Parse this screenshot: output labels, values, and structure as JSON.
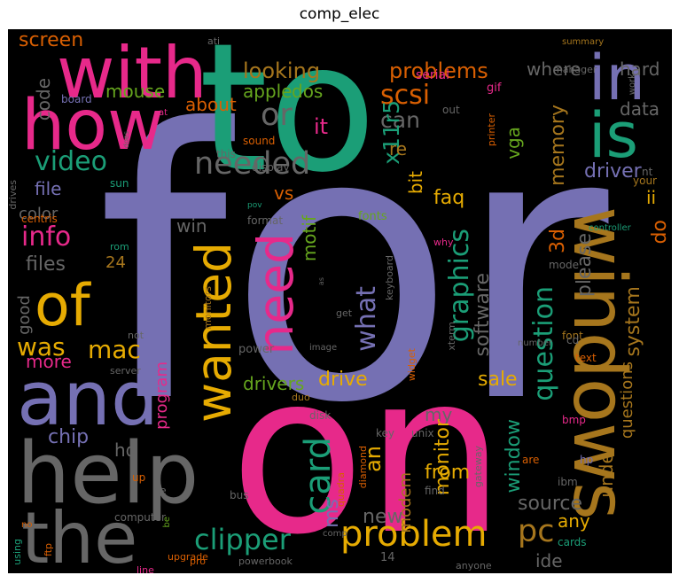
{
  "title": "comp_elec",
  "colors": {
    "purple": "#7570b3",
    "green": "#1b9e77",
    "pink": "#e7298a",
    "gold": "#e6ab02",
    "olive": "#a6761d",
    "orange": "#d95f02",
    "lime": "#66a61e",
    "gray": "#666666"
  },
  "words": [
    {
      "text": "for"
    },
    {
      "text": "to"
    },
    {
      "text": "on"
    },
    {
      "text": "with"
    },
    {
      "text": "how"
    },
    {
      "text": "help"
    },
    {
      "text": "and"
    },
    {
      "text": "the"
    },
    {
      "text": "windows"
    },
    {
      "text": "in"
    },
    {
      "text": "is"
    },
    {
      "text": "of"
    },
    {
      "text": "wanted"
    },
    {
      "text": "need"
    },
    {
      "text": "info"
    },
    {
      "text": "video"
    },
    {
      "text": "needed"
    },
    {
      "text": "or"
    },
    {
      "text": "what"
    },
    {
      "text": "graphics"
    },
    {
      "text": "question"
    },
    {
      "text": "problem"
    },
    {
      "text": "clipper"
    },
    {
      "text": "card"
    },
    {
      "text": "pc"
    },
    {
      "text": "was"
    },
    {
      "text": "mac"
    },
    {
      "text": "screen"
    },
    {
      "text": "looking"
    },
    {
      "text": "problems"
    },
    {
      "text": "apple"
    },
    {
      "text": "where"
    },
    {
      "text": "hard"
    },
    {
      "text": "mouse"
    },
    {
      "text": "dos"
    },
    {
      "text": "scsi"
    },
    {
      "text": "about"
    },
    {
      "text": "code"
    },
    {
      "text": "can"
    },
    {
      "text": "data"
    },
    {
      "text": "x11r5"
    },
    {
      "text": "it"
    },
    {
      "text": "memory"
    },
    {
      "text": "vga"
    },
    {
      "text": "re"
    },
    {
      "text": "file"
    },
    {
      "text": "vs"
    },
    {
      "text": "driver"
    },
    {
      "text": "color"
    },
    {
      "text": "faq"
    },
    {
      "text": "bit"
    },
    {
      "text": "ii"
    },
    {
      "text": "win"
    },
    {
      "text": "do"
    },
    {
      "text": "24"
    },
    {
      "text": "files"
    },
    {
      "text": "motif"
    },
    {
      "text": "3d"
    },
    {
      "text": "please"
    },
    {
      "text": "good"
    },
    {
      "text": "system"
    },
    {
      "text": "software"
    },
    {
      "text": "more"
    },
    {
      "text": "drivers"
    },
    {
      "text": "drive"
    },
    {
      "text": "program"
    },
    {
      "text": "sale"
    },
    {
      "text": "my"
    },
    {
      "text": "questions"
    },
    {
      "text": "chip"
    },
    {
      "text": "hd"
    },
    {
      "text": "from"
    },
    {
      "text": "monitor"
    },
    {
      "text": "window"
    },
    {
      "text": "an"
    },
    {
      "text": "source"
    },
    {
      "text": "modem"
    },
    {
      "text": "under"
    },
    {
      "text": "any"
    },
    {
      "text": "new"
    },
    {
      "text": "ms"
    },
    {
      "text": "ide"
    },
    {
      "text": "ati"
    },
    {
      "text": "board"
    },
    {
      "text": "sound"
    },
    {
      "text": "display"
    },
    {
      "text": "this"
    },
    {
      "text": "sun"
    },
    {
      "text": "format"
    },
    {
      "text": "centris"
    },
    {
      "text": "rom"
    },
    {
      "text": "monitors"
    },
    {
      "text": "server"
    },
    {
      "text": "not"
    },
    {
      "text": "power"
    },
    {
      "text": "fonts"
    },
    {
      "text": "keyboard"
    },
    {
      "text": "get"
    },
    {
      "text": "font"
    },
    {
      "text": "text"
    },
    {
      "text": "cd"
    },
    {
      "text": "image"
    },
    {
      "text": "widget"
    },
    {
      "text": "duo"
    },
    {
      "text": "disk"
    },
    {
      "text": "key"
    },
    {
      "text": "unix"
    },
    {
      "text": "xterm"
    },
    {
      "text": "diamond"
    },
    {
      "text": "quadra"
    },
    {
      "text": "gateway"
    },
    {
      "text": "number"
    },
    {
      "text": "bmp"
    },
    {
      "text": "hp"
    },
    {
      "text": "ibm"
    },
    {
      "text": "find"
    },
    {
      "text": "are"
    },
    {
      "text": "up"
    },
    {
      "text": "se"
    },
    {
      "text": "bus"
    },
    {
      "text": "computer"
    },
    {
      "text": "comp"
    },
    {
      "text": "ftp"
    },
    {
      "text": "line"
    },
    {
      "text": "using"
    },
    {
      "text": "upgrade"
    },
    {
      "text": "pro"
    },
    {
      "text": "powerbook"
    },
    {
      "text": "14"
    },
    {
      "text": "anyone"
    },
    {
      "text": "cards"
    },
    {
      "text": "serial"
    },
    {
      "text": "gif"
    },
    {
      "text": "printer"
    },
    {
      "text": "manager"
    },
    {
      "text": "summary"
    },
    {
      "text": "work"
    },
    {
      "text": "nt"
    },
    {
      "text": "your"
    },
    {
      "text": "out"
    },
    {
      "text": "controller"
    },
    {
      "text": "mode"
    },
    {
      "text": "why"
    },
    {
      "text": "drives"
    },
    {
      "text": "pov"
    },
    {
      "text": "does"
    },
    {
      "text": "at"
    },
    {
      "text": "be"
    },
    {
      "text": "no"
    },
    {
      "text": "as"
    }
  ]
}
